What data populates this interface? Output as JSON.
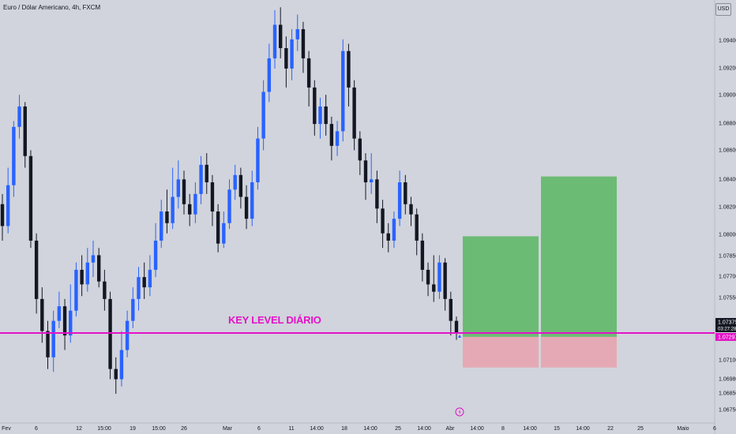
{
  "chart_data": {
    "type": "candlestick",
    "title": "Euro / Dólar Americano, 4h, FXCM",
    "currency": "USD",
    "y_ticks": [
      "1.09400",
      "1.09200",
      "1.09000",
      "1.08800",
      "1.08600",
      "1.08400",
      "1.08200",
      "1.08000",
      "1.07850",
      "1.07700",
      "1.07550",
      "1.07100",
      "1.06980",
      "1.06850",
      "1.06750"
    ],
    "x_ticks": [
      "Fev",
      "6",
      "12",
      "15:00",
      "19",
      "15:00",
      "26",
      "Mar",
      "6",
      "11",
      "14:00",
      "18",
      "14:00",
      "25",
      "14:00",
      "Abr",
      "14:00",
      "8",
      "14:00",
      "15",
      "14:00",
      "22",
      "25",
      "Maio",
      "6"
    ],
    "last_price": "1.07375",
    "countdown": "03:27:28",
    "key_level_price": "1.07297",
    "key_level_label": "KEY LEVEL DIÁRIO",
    "ylim": [
      1.0675,
      1.0965
    ],
    "colors": {
      "up": "#2962ff",
      "down": "#131722",
      "key_level": "#e312c7",
      "profit_zone": "#6cbb74",
      "loss_zone": "#e4a9b4",
      "background": "#d1d4dc"
    },
    "candles": {
      "note_open_close_high_low": true,
      "series": [
        [
          1.0825,
          1.081,
          1.0832,
          1.08
        ],
        [
          1.081,
          1.0838,
          1.085,
          1.0805
        ],
        [
          1.0838,
          1.0878,
          1.0882,
          1.083
        ],
        [
          1.0878,
          1.0892,
          1.09,
          1.087
        ],
        [
          1.0892,
          1.0858,
          1.0895,
          1.085
        ],
        [
          1.0858,
          1.08,
          1.0862,
          1.0795
        ],
        [
          1.08,
          1.076,
          1.0805,
          1.075
        ],
        [
          1.076,
          1.0738,
          1.0768,
          1.073
        ],
        [
          1.0738,
          1.072,
          1.0745,
          1.0712
        ],
        [
          1.072,
          1.0745,
          1.0752,
          1.071
        ],
        [
          1.0745,
          1.0755,
          1.0765,
          1.074
        ],
        [
          1.0755,
          1.0735,
          1.076,
          1.0725
        ],
        [
          1.0735,
          1.0752,
          1.077,
          1.073
        ],
        [
          1.0752,
          1.078,
          1.0785,
          1.0748
        ],
        [
          1.078,
          1.077,
          1.079,
          1.0762
        ],
        [
          1.077,
          1.0785,
          1.0795,
          1.0765
        ],
        [
          1.0785,
          1.079,
          1.08,
          1.0775
        ],
        [
          1.079,
          1.0772,
          1.0795,
          1.0768
        ],
        [
          1.0772,
          1.076,
          1.078,
          1.0752
        ],
        [
          1.076,
          1.0712,
          1.0765,
          1.0705
        ],
        [
          1.0712,
          1.0705,
          1.072,
          1.0695
        ],
        [
          1.0705,
          1.0725,
          1.0738,
          1.07
        ],
        [
          1.0725,
          1.0745,
          1.0752,
          1.072
        ],
        [
          1.0745,
          1.076,
          1.0768,
          1.074
        ],
        [
          1.076,
          1.0775,
          1.0782,
          1.0752
        ],
        [
          1.0775,
          1.0768,
          1.0785,
          1.076
        ],
        [
          1.0768,
          1.078,
          1.079,
          1.0762
        ],
        [
          1.078,
          1.08,
          1.0812,
          1.0775
        ],
        [
          1.08,
          1.082,
          1.0828,
          1.0795
        ],
        [
          1.082,
          1.0812,
          1.0835,
          1.0805
        ],
        [
          1.0812,
          1.083,
          1.085,
          1.0808
        ],
        [
          1.083,
          1.0842,
          1.0855,
          1.0822
        ],
        [
          1.0842,
          1.0825,
          1.0848,
          1.0818
        ],
        [
          1.0825,
          1.0818,
          1.0832,
          1.081
        ],
        [
          1.0818,
          1.0832,
          1.084,
          1.0812
        ],
        [
          1.0832,
          1.0852,
          1.0858,
          1.0825
        ],
        [
          1.0852,
          1.084,
          1.086,
          1.0832
        ],
        [
          1.084,
          1.082,
          1.0845,
          1.081
        ],
        [
          1.082,
          1.0798,
          1.0825,
          1.0792
        ],
        [
          1.0798,
          1.0812,
          1.082,
          1.0795
        ],
        [
          1.0812,
          1.0835,
          1.0842,
          1.0808
        ],
        [
          1.0835,
          1.0845,
          1.0852,
          1.0828
        ],
        [
          1.0845,
          1.083,
          1.085,
          1.0822
        ],
        [
          1.083,
          1.0815,
          1.0838,
          1.0808
        ],
        [
          1.0815,
          1.084,
          1.0848,
          1.081
        ],
        [
          1.084,
          1.087,
          1.0878,
          1.0835
        ],
        [
          1.087,
          1.0902,
          1.091,
          1.0862
        ],
        [
          1.0902,
          1.0925,
          1.0935,
          1.0895
        ],
        [
          1.0925,
          1.0948,
          1.0958,
          1.0918
        ],
        [
          1.0948,
          1.0932,
          1.096,
          1.0925
        ],
        [
          1.0932,
          1.0918,
          1.094,
          1.0905
        ],
        [
          1.0918,
          1.0938,
          1.0945,
          1.091
        ],
        [
          1.0938,
          1.0945,
          1.0955,
          1.093
        ],
        [
          1.0945,
          1.0925,
          1.095,
          1.0915
        ],
        [
          1.0925,
          1.0905,
          1.093,
          1.0892
        ],
        [
          1.0905,
          1.088,
          1.091,
          1.0872
        ],
        [
          1.088,
          1.0892,
          1.0898,
          1.087
        ],
        [
          1.0892,
          1.088,
          1.09,
          1.0872
        ],
        [
          1.088,
          1.0865,
          1.0885,
          1.0855
        ],
        [
          1.0865,
          1.0875,
          1.0882,
          1.0858
        ],
        [
          1.0875,
          1.093,
          1.0938,
          1.0868
        ],
        [
          1.093,
          1.0905,
          1.0935,
          1.0892
        ],
        [
          1.0905,
          1.087,
          1.091,
          1.0862
        ],
        [
          1.087,
          1.0855,
          1.0875,
          1.0845
        ],
        [
          1.0855,
          1.084,
          1.086,
          1.0828
        ],
        [
          1.084,
          1.0842,
          1.086,
          1.0832
        ],
        [
          1.0842,
          1.0822,
          1.0848,
          1.0812
        ],
        [
          1.0822,
          1.0805,
          1.0828,
          1.0795
        ],
        [
          1.0805,
          1.08,
          1.0812,
          1.0792
        ],
        [
          1.08,
          1.0815,
          1.082,
          1.0795
        ],
        [
          1.0815,
          1.084,
          1.0848,
          1.081
        ],
        [
          1.084,
          1.0825,
          1.0845,
          1.0818
        ],
        [
          1.0825,
          1.0818,
          1.083,
          1.081
        ],
        [
          1.0818,
          1.08,
          1.0822,
          1.079
        ],
        [
          1.08,
          1.078,
          1.0805,
          1.0772
        ],
        [
          1.078,
          1.077,
          1.0785,
          1.0762
        ],
        [
          1.077,
          1.0765,
          1.079,
          1.0758
        ],
        [
          1.0765,
          1.0785,
          1.079,
          1.076
        ],
        [
          1.0785,
          1.076,
          1.0788,
          1.0752
        ],
        [
          1.076,
          1.0745,
          1.0765,
          1.0735
        ],
        [
          1.0745,
          1.0737,
          1.0748,
          1.0732
        ]
      ]
    },
    "position_zones": [
      {
        "name": "long-1",
        "entry": 1.0734,
        "target": 1.0803,
        "stop": 1.0713
      },
      {
        "name": "long-2",
        "entry": 1.0734,
        "target": 1.0844,
        "stop": 1.0713
      }
    ]
  }
}
